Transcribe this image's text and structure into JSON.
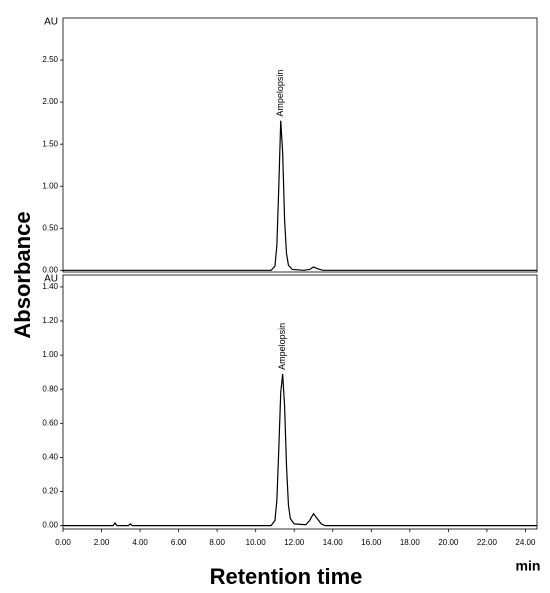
{
  "chart_data": [
    {
      "type": "line",
      "y_label": "Absorbance",
      "y_unit": "AU",
      "xlim": [
        0,
        24.6
      ],
      "ylim": [
        -0.02,
        3.0
      ],
      "yticks": [
        {
          "value": 0,
          "label": "0.00"
        },
        {
          "value": 0.5,
          "label": "0.50"
        },
        {
          "value": 1,
          "label": "1.00"
        },
        {
          "value": 1.5,
          "label": "1.50"
        },
        {
          "value": 2,
          "label": "2.00"
        },
        {
          "value": 2.5,
          "label": "2.50"
        }
      ],
      "annotations": [
        {
          "text": "Ampelopsin",
          "x": 11.3,
          "y": 1.78
        }
      ],
      "series": [
        {
          "color": "#000000",
          "x": [
            0,
            10.8,
            11.0,
            11.1,
            11.2,
            11.3,
            11.4,
            11.5,
            11.6,
            11.7,
            11.9,
            12.5,
            12.8,
            13.0,
            13.2,
            13.5,
            24.6
          ],
          "values": [
            0,
            0,
            0.05,
            0.3,
            1.0,
            1.78,
            1.4,
            0.6,
            0.2,
            0.06,
            0.01,
            0,
            0.01,
            0.04,
            0.02,
            0,
            0
          ]
        }
      ]
    },
    {
      "type": "line",
      "y_unit": "AU",
      "x_label": "Retention time",
      "x_unit": "min",
      "xlim": [
        0,
        24.6
      ],
      "ylim": [
        -0.02,
        1.47
      ],
      "xticks": [
        {
          "value": 0,
          "label": "0.00"
        },
        {
          "value": 2,
          "label": "2.00"
        },
        {
          "value": 4,
          "label": "4.00"
        },
        {
          "value": 6,
          "label": "6.00"
        },
        {
          "value": 8,
          "label": "8.00"
        },
        {
          "value": 10,
          "label": "10.00"
        },
        {
          "value": 12,
          "label": "12.00"
        },
        {
          "value": 14,
          "label": "14.00"
        },
        {
          "value": 16,
          "label": "16.00"
        },
        {
          "value": 18,
          "label": "18.00"
        },
        {
          "value": 20,
          "label": "20.00"
        },
        {
          "value": 22,
          "label": "22.00"
        },
        {
          "value": 24,
          "label": "24.00"
        }
      ],
      "yticks": [
        {
          "value": 0,
          "label": "0.00"
        },
        {
          "value": 0.2,
          "label": "0.20"
        },
        {
          "value": 0.4,
          "label": "0.40"
        },
        {
          "value": 0.6,
          "label": "0.60"
        },
        {
          "value": 0.8,
          "label": "0.80"
        },
        {
          "value": 1,
          "label": "1.00"
        },
        {
          "value": 1.2,
          "label": "1.20"
        },
        {
          "value": 1.4,
          "label": "1.40"
        }
      ],
      "annotations": [
        {
          "text": "Ampelopsin",
          "x": 11.4,
          "y": 0.89
        }
      ],
      "series": [
        {
          "color": "#000000",
          "x": [
            0,
            2.6,
            2.7,
            2.8,
            3.4,
            3.5,
            3.6,
            10.8,
            11.0,
            11.1,
            11.2,
            11.3,
            11.4,
            11.5,
            11.6,
            11.7,
            11.8,
            12.0,
            12.6,
            12.8,
            13.0,
            13.2,
            13.4,
            13.6,
            24.6
          ],
          "values": [
            0,
            0,
            0.015,
            0,
            0,
            0.01,
            0,
            0,
            0.03,
            0.15,
            0.45,
            0.78,
            0.89,
            0.7,
            0.35,
            0.12,
            0.04,
            0.01,
            0.005,
            0.03,
            0.07,
            0.04,
            0.01,
            0,
            0
          ]
        }
      ]
    }
  ]
}
